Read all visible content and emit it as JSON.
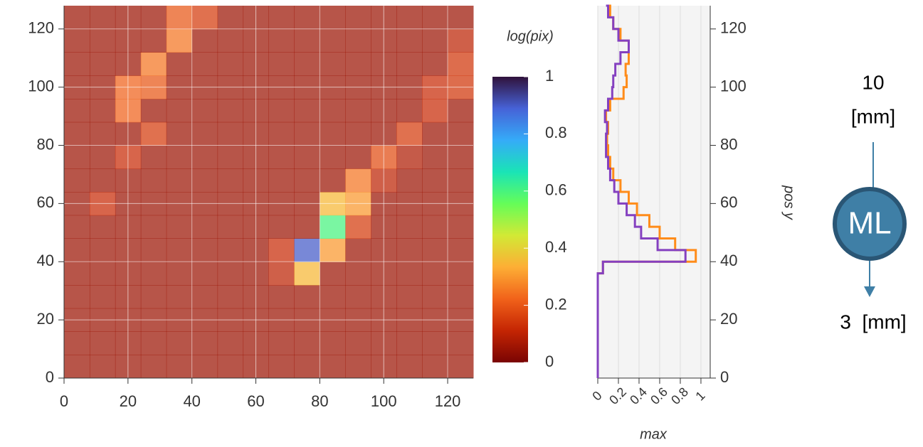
{
  "chart_data": [
    {
      "type": "heatmap",
      "xlim": [
        0,
        128
      ],
      "ylim": [
        0,
        128
      ],
      "xticks": [
        0,
        20,
        40,
        60,
        80,
        100,
        120
      ],
      "yticks": [
        0,
        20,
        40,
        60,
        80,
        100,
        120
      ],
      "grid": true,
      "xedges": [
        0,
        8,
        16,
        24,
        32,
        40,
        48,
        56,
        64,
        72,
        80,
        88,
        96,
        104,
        112,
        120,
        128
      ],
      "yedges": [
        0,
        8,
        16,
        24,
        32,
        40,
        48,
        56,
        64,
        72,
        80,
        88,
        96,
        104,
        112,
        120,
        128
      ],
      "z": [
        [
          0.05,
          0.05,
          0.05,
          0.05,
          0.05,
          0.05,
          0.05,
          0.05,
          0.05,
          0.05,
          0.05,
          0.05,
          0.05,
          0.05,
          0.05,
          0.05
        ],
        [
          0.05,
          0.05,
          0.05,
          0.05,
          0.05,
          0.05,
          0.05,
          0.05,
          0.05,
          0.05,
          0.05,
          0.05,
          0.05,
          0.05,
          0.05,
          0.05
        ],
        [
          0.05,
          0.05,
          0.05,
          0.05,
          0.05,
          0.05,
          0.05,
          0.05,
          0.05,
          0.05,
          0.05,
          0.05,
          0.05,
          0.05,
          0.05,
          0.05
        ],
        [
          0.05,
          0.05,
          0.05,
          0.05,
          0.05,
          0.05,
          0.05,
          0.05,
          0.05,
          0.05,
          0.05,
          0.05,
          0.05,
          0.05,
          0.05,
          0.05
        ],
        [
          0.05,
          0.05,
          0.05,
          0.05,
          0.05,
          0.05,
          0.05,
          0.05,
          0.1,
          0.35,
          0.05,
          0.05,
          0.05,
          0.05,
          0.05,
          0.05
        ],
        [
          0.05,
          0.05,
          0.05,
          0.05,
          0.05,
          0.05,
          0.05,
          0.05,
          0.12,
          0.9,
          0.3,
          0.05,
          0.05,
          0.05,
          0.05,
          0.05
        ],
        [
          0.05,
          0.05,
          0.05,
          0.05,
          0.05,
          0.05,
          0.05,
          0.05,
          0.05,
          0.05,
          0.6,
          0.15,
          0.05,
          0.05,
          0.05,
          0.05
        ],
        [
          0.05,
          0.12,
          0.05,
          0.05,
          0.05,
          0.05,
          0.05,
          0.05,
          0.05,
          0.05,
          0.35,
          0.3,
          0.05,
          0.05,
          0.05,
          0.05
        ],
        [
          0.05,
          0.05,
          0.05,
          0.05,
          0.05,
          0.05,
          0.05,
          0.05,
          0.05,
          0.05,
          0.05,
          0.25,
          0.1,
          0.05,
          0.05,
          0.05
        ],
        [
          0.05,
          0.05,
          0.12,
          0.05,
          0.05,
          0.05,
          0.05,
          0.05,
          0.05,
          0.05,
          0.05,
          0.05,
          0.18,
          0.08,
          0.05,
          0.05
        ],
        [
          0.05,
          0.05,
          0.05,
          0.15,
          0.05,
          0.05,
          0.05,
          0.05,
          0.05,
          0.05,
          0.05,
          0.05,
          0.05,
          0.15,
          0.05,
          0.05
        ],
        [
          0.05,
          0.05,
          0.22,
          0.05,
          0.05,
          0.05,
          0.05,
          0.05,
          0.05,
          0.05,
          0.05,
          0.05,
          0.05,
          0.05,
          0.12,
          0.05
        ],
        [
          0.05,
          0.05,
          0.22,
          0.2,
          0.05,
          0.05,
          0.05,
          0.05,
          0.05,
          0.05,
          0.05,
          0.05,
          0.05,
          0.05,
          0.12,
          0.14
        ],
        [
          0.05,
          0.05,
          0.05,
          0.25,
          0.05,
          0.05,
          0.05,
          0.05,
          0.05,
          0.05,
          0.05,
          0.05,
          0.05,
          0.05,
          0.05,
          0.14
        ],
        [
          0.05,
          0.05,
          0.05,
          0.05,
          0.25,
          0.05,
          0.05,
          0.05,
          0.05,
          0.05,
          0.05,
          0.05,
          0.05,
          0.05,
          0.05,
          0.1
        ],
        [
          0.05,
          0.05,
          0.05,
          0.05,
          0.2,
          0.15,
          0.05,
          0.05,
          0.05,
          0.05,
          0.05,
          0.05,
          0.05,
          0.05,
          0.05,
          0.05
        ]
      ],
      "colormap": [
        "#7a0403",
        "#c42503",
        "#f1621a",
        "#fdae35",
        "#d2e935",
        "#65fd58",
        "#1ae4b6",
        "#35abf8",
        "#4662d7",
        "#30123b"
      ],
      "colorbar": {
        "title": "log(pix)",
        "lim": [
          0,
          1
        ],
        "ticks": [
          0,
          0.2,
          0.4,
          0.6,
          0.8,
          1
        ]
      }
    },
    {
      "type": "profile",
      "xlabel": "max",
      "ylabel": "pos y",
      "xlim": [
        0,
        1.09
      ],
      "ylim": [
        0,
        128
      ],
      "xticks": [
        0,
        0.2,
        0.4,
        0.6,
        0.8,
        1
      ],
      "yticks": [
        0,
        20,
        40,
        60,
        80,
        100,
        120
      ],
      "grid": true,
      "y": [
        0,
        4,
        8,
        12,
        16,
        20,
        24,
        28,
        32,
        36,
        40,
        44,
        48,
        52,
        56,
        60,
        64,
        68,
        72,
        76,
        80,
        84,
        88,
        92,
        96,
        100,
        104,
        108,
        112,
        116,
        120,
        124,
        128
      ],
      "series": [
        {
          "color": "#ff8c1a",
          "values": [
            0,
            0,
            0,
            0,
            0,
            0,
            0,
            0,
            0,
            0.05,
            0.95,
            0.75,
            0.6,
            0.5,
            0.38,
            0.3,
            0.22,
            0.15,
            0.12,
            0.1,
            0.09,
            0.1,
            0.08,
            0.12,
            0.25,
            0.28,
            0.27,
            0.3,
            0.3,
            0.22,
            0.15,
            0.12,
            0.1
          ]
        },
        {
          "color": "#8440c0",
          "values": [
            0,
            0,
            0,
            0,
            0,
            0,
            0,
            0,
            0,
            0.05,
            0.85,
            0.58,
            0.42,
            0.36,
            0.28,
            0.2,
            0.16,
            0.12,
            0.1,
            0.08,
            0.08,
            0.09,
            0.07,
            0.1,
            0.14,
            0.15,
            0.17,
            0.22,
            0.3,
            0.2,
            0.15,
            0.1,
            0.08
          ]
        }
      ]
    }
  ],
  "diagram": {
    "input_value": "10",
    "input_unit": "[mm]",
    "node": "ML",
    "output": "3  [mm]"
  }
}
